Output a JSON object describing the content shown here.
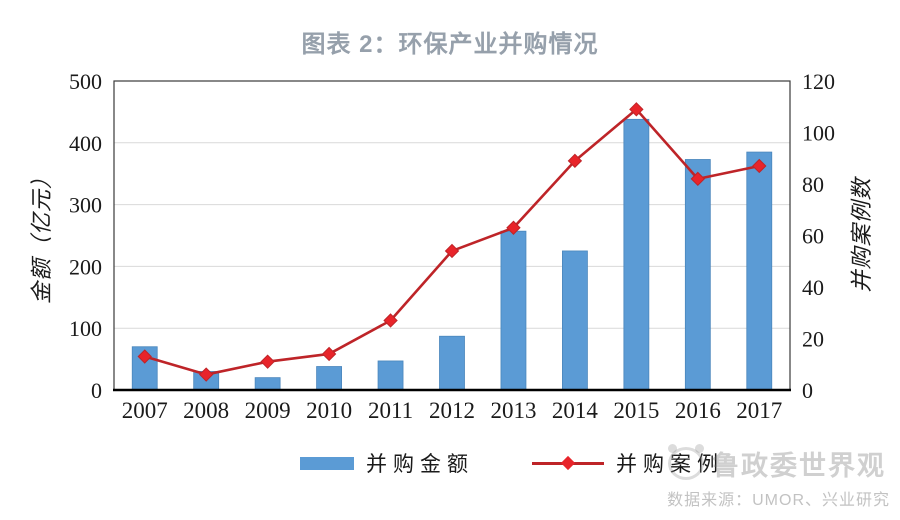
{
  "title": "图表 2：环保产业并购情况",
  "legend": {
    "amount_label": "并购金额",
    "cases_label": "并购案例"
  },
  "watermark": {
    "brand": "鲁政委世界观",
    "source": "数据来源：UMOR、兴业研究"
  },
  "colors": {
    "bar": "#5B9BD5",
    "bar_edge": "#4A86BC",
    "line": "#BE2428",
    "marker": "#E8242A",
    "grid": "#D9D9D9",
    "axis_text": "#1A1A1A",
    "title": "#96A0AB"
  },
  "chart_data": {
    "type": "bar",
    "subtype": "bar+line-dual-axis",
    "title": "图表 2：环保产业并购情况",
    "categories": [
      "2007",
      "2008",
      "2009",
      "2010",
      "2011",
      "2012",
      "2013",
      "2014",
      "2015",
      "2016",
      "2017"
    ],
    "series": [
      {
        "name": "并购金额",
        "type": "bar",
        "axis": "left",
        "values": [
          70,
          30,
          20,
          38,
          47,
          87,
          257,
          225,
          438,
          373,
          385
        ]
      },
      {
        "name": "并购案例",
        "type": "line",
        "axis": "right",
        "marker": "diamond",
        "values": [
          13,
          6,
          11,
          14,
          27,
          54,
          63,
          89,
          109,
          82,
          87
        ]
      }
    ],
    "left_axis": {
      "label": "金额（亿元）",
      "min": 0,
      "max": 500,
      "ticks": [
        0,
        100,
        200,
        300,
        400,
        500
      ]
    },
    "right_axis": {
      "label": "并购案例数",
      "min": 0,
      "max": 120,
      "ticks": [
        0,
        20,
        40,
        60,
        80,
        100,
        120
      ]
    },
    "grid": true,
    "legend_position": "bottom"
  }
}
